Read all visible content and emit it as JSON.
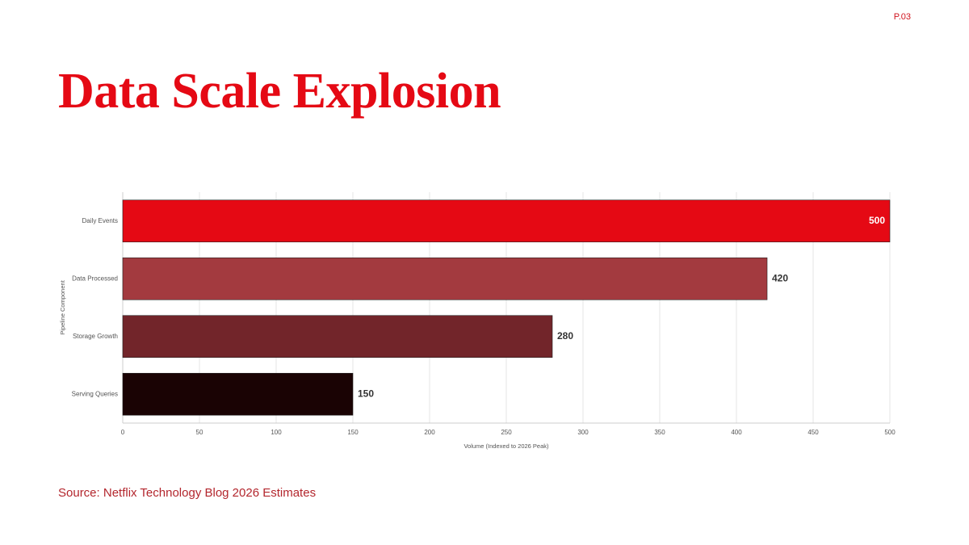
{
  "page_label": "P.03",
  "title": "Data Scale Explosion",
  "source": "Source: Netflix Technology Blog 2026 Estimates",
  "chart_data": {
    "type": "bar",
    "orientation": "horizontal",
    "categories": [
      "Daily Events",
      "Data Processed",
      "Storage Growth",
      "Serving Queries"
    ],
    "values": [
      500,
      420,
      280,
      150
    ],
    "colors": [
      "#e50914",
      "#a33a3f",
      "#72252a",
      "#1a0304"
    ],
    "x_label": "Volume (Indexed to 2026 Peak)",
    "y_label": "Pipeline Component",
    "xlim": [
      0,
      500
    ],
    "xticks": [
      0,
      50,
      100,
      150,
      200,
      250,
      300,
      350,
      400,
      450,
      500
    ],
    "grid": true
  }
}
